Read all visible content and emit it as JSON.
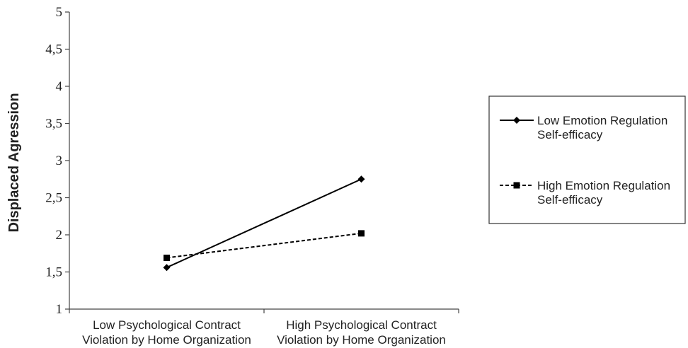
{
  "chart_data": {
    "type": "line",
    "ylabel": "Displaced Agression",
    "xlabel": "",
    "ylim": [
      1,
      5
    ],
    "yticks": [
      "1",
      "1,5",
      "2",
      "2,5",
      "3",
      "3,5",
      "4",
      "4,5",
      "5"
    ],
    "categories": [
      [
        "Low Psychological Contract",
        "Violation by Home Organization"
      ],
      [
        "High Psychological Contract",
        "Violation by Home Organization"
      ]
    ],
    "series": [
      {
        "name": [
          "Low Emotion Regulation",
          "Self-efficacy"
        ],
        "values": [
          1.56,
          2.75
        ],
        "marker": "diamond",
        "line_style": "solid"
      },
      {
        "name": [
          "High Emotion Regulation",
          "Self-efficacy"
        ],
        "values": [
          1.69,
          2.02
        ],
        "marker": "square",
        "line_style": "dashed"
      }
    ],
    "legend_position": "right",
    "grid": false,
    "colors": {
      "series": "#000000",
      "axis": "#444444"
    }
  }
}
